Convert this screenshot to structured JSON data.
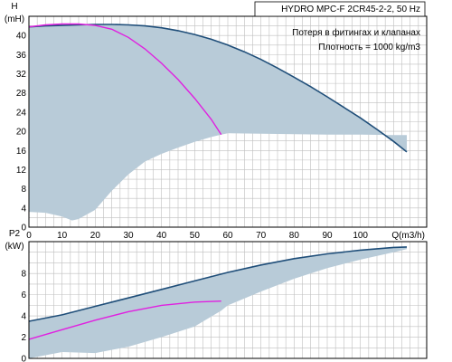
{
  "chart_data": [
    {
      "type": "line",
      "name": "head",
      "ylabel_lines": [
        "H",
        "(mH)"
      ],
      "xlabel": "",
      "x_ticks": [
        "0",
        "10",
        "20",
        "30",
        "40",
        "50",
        "60",
        "70",
        "80",
        "90",
        "100"
      ],
      "y_ticks": [
        "0",
        "4",
        "8",
        "12",
        "16",
        "20",
        "24",
        "28",
        "32",
        "36",
        "40"
      ],
      "xlim": [
        0,
        120
      ],
      "ylim": [
        0,
        44
      ],
      "grid": true,
      "annotation_lines": [
        "HYDRO MPC-F 2CR45-2-2, 50 Hz",
        "Потеря в фитингах и клапанах",
        "Плотность = 1000 kg/m3"
      ],
      "annotation_position": "top-right",
      "series": [
        {
          "color": "#1f4e79",
          "x": [
            0,
            5,
            10,
            15,
            20,
            25,
            30,
            35,
            40,
            45,
            50,
            55,
            60,
            65,
            70,
            75,
            80,
            85,
            90,
            95,
            100,
            105,
            110,
            114
          ],
          "y": [
            41.8,
            42.0,
            42.1,
            42.2,
            42.3,
            42.3,
            42.2,
            42.0,
            41.6,
            41.0,
            40.2,
            39.2,
            38.0,
            36.6,
            35.0,
            33.2,
            31.3,
            29.3,
            27.2,
            25.0,
            22.8,
            20.4,
            17.9,
            15.7
          ]
        },
        {
          "color": "#e020e0",
          "x": [
            0,
            5,
            10,
            15,
            20,
            25,
            30,
            35,
            40,
            45,
            50,
            55,
            58
          ],
          "y": [
            41.8,
            42.2,
            42.4,
            42.4,
            42.1,
            41.3,
            39.6,
            37.2,
            34.2,
            30.8,
            26.9,
            22.5,
            19.3
          ]
        }
      ],
      "shaded_region": {
        "color": "#b8cbd8",
        "x_upper": [
          0,
          5,
          10,
          15,
          20,
          25,
          30,
          35,
          40,
          45,
          50,
          55,
          58,
          60,
          65,
          70,
          75,
          80,
          85,
          90,
          95,
          100,
          105,
          110,
          114
        ],
        "y_upper": [
          41.8,
          42.0,
          42.1,
          42.2,
          42.3,
          42.3,
          42.2,
          42.0,
          41.6,
          41.0,
          40.2,
          39.2,
          38.6,
          38.0,
          36.6,
          35.0,
          33.2,
          31.3,
          29.3,
          27.2,
          25.0,
          22.8,
          20.4,
          17.9,
          15.7
        ],
        "x_lower": [
          0,
          5,
          10,
          13,
          15,
          20,
          25,
          30,
          35,
          40,
          45,
          50,
          55,
          58,
          60,
          70,
          80,
          90,
          100,
          110,
          114
        ],
        "y_lower": [
          3.2,
          3.0,
          2.2,
          1.4,
          1.7,
          3.6,
          7.6,
          11.0,
          13.7,
          15.3,
          16.6,
          17.8,
          18.8,
          19.3,
          19.6,
          19.5,
          19.4,
          19.3,
          19.3,
          19.2,
          19.2
        ]
      }
    },
    {
      "type": "line",
      "name": "power",
      "ylabel_lines": [
        "P2",
        "(kW)"
      ],
      "xlabel": "",
      "x_ticks": [],
      "y_ticks": [
        "0",
        "2",
        "4",
        "6",
        "8"
      ],
      "xlim": [
        0,
        120
      ],
      "ylim": [
        0,
        11
      ],
      "grid": true,
      "series": [
        {
          "color": "#1f4e79",
          "x": [
            0,
            10,
            20,
            30,
            40,
            50,
            60,
            70,
            80,
            90,
            100,
            110,
            114
          ],
          "y": [
            3.5,
            4.1,
            4.9,
            5.7,
            6.5,
            7.3,
            8.1,
            8.8,
            9.4,
            9.85,
            10.2,
            10.45,
            10.5
          ]
        },
        {
          "color": "#e020e0",
          "x": [
            0,
            10,
            20,
            30,
            40,
            50,
            58
          ],
          "y": [
            1.8,
            2.7,
            3.6,
            4.4,
            5.0,
            5.3,
            5.4
          ]
        }
      ],
      "shaded_region": {
        "color": "#b8cbd8",
        "x_upper": [
          0,
          10,
          20,
          30,
          40,
          50,
          60,
          70,
          80,
          90,
          100,
          110,
          114
        ],
        "y_upper": [
          3.5,
          4.1,
          4.9,
          5.7,
          6.5,
          7.3,
          8.1,
          8.8,
          9.4,
          9.85,
          10.2,
          10.45,
          10.5
        ],
        "x_lower": [
          0,
          5,
          10,
          20,
          30,
          40,
          50,
          58,
          60,
          70,
          80,
          90,
          100,
          110,
          114
        ],
        "y_lower": [
          0.0,
          0.3,
          0.6,
          0.5,
          1.1,
          2.0,
          3.0,
          4.5,
          5.0,
          6.3,
          7.5,
          8.5,
          9.3,
          10.0,
          10.3
        ]
      }
    }
  ],
  "shared_x_axis_label": "Q(m3/h)"
}
